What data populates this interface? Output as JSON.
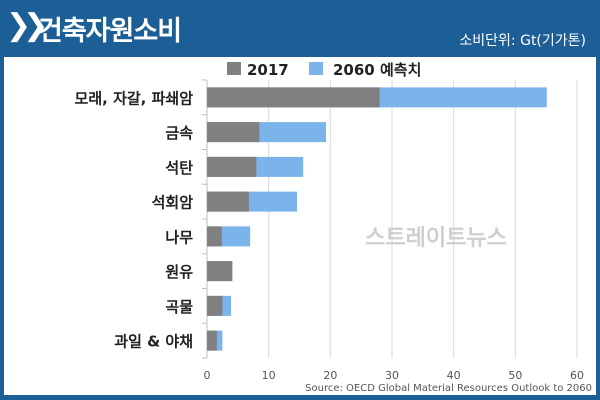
{
  "header": {
    "title": "건축자원소비",
    "unit": "소비단위: Gt(기가톤)",
    "icon": "double-chevron-right-icon"
  },
  "watermark": "스트레이트뉴스",
  "chart_data": {
    "type": "bar",
    "orientation": "horizontal",
    "categories": [
      "모래, 자갈, 파쇄암",
      "금속",
      "석탄",
      "석회암",
      "나무",
      "원유",
      "곡물",
      "과일 & 야채"
    ],
    "series": [
      {
        "name": "2017",
        "values": [
          28,
          8.5,
          8,
          6.8,
          2.4,
          4.1,
          2.5,
          1.6
        ],
        "color": "#808080"
      },
      {
        "name": "2060 예측치",
        "values": [
          55.1,
          19.3,
          15.6,
          14.6,
          7,
          4.1,
          3.9,
          2.5
        ],
        "color": "#7ab4ea"
      }
    ],
    "xlim": [
      0,
      60
    ],
    "xticks": [
      "0",
      "10",
      "20",
      "30",
      "40",
      "50",
      "60"
    ],
    "grid": true,
    "legend": "top",
    "source": "Source: OECD Global Material Resources Outlook to 2060"
  }
}
